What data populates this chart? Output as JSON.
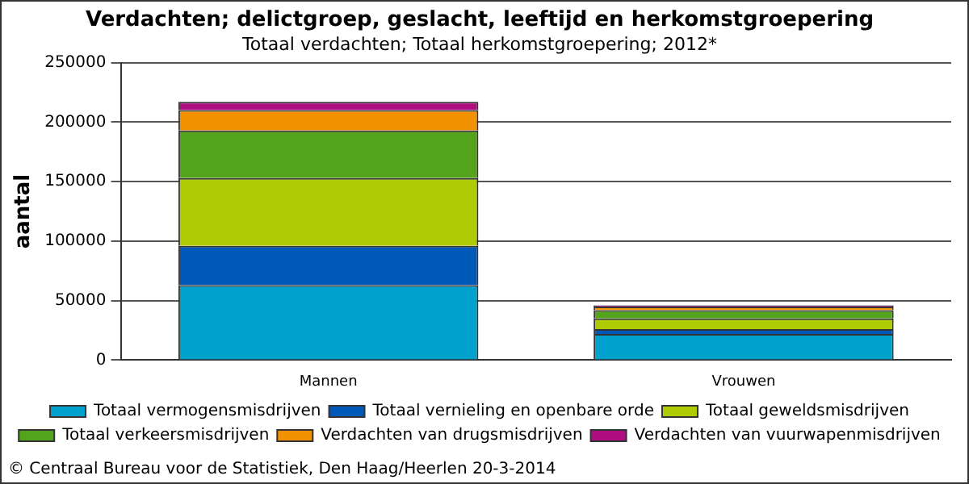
{
  "chart_data": {
    "type": "bar",
    "title": "Verdachten; delictgroep, geslacht, leeftijd en herkomstgroepering",
    "subtitle": "Totaal verdachten; Totaal herkomstgroepering; 2012*",
    "ylabel": "aantal",
    "categories": [
      "Mannen",
      "Vrouwen"
    ],
    "stacked": true,
    "series": [
      {
        "name": "Totaal vermogensmisdrijven",
        "color": "#00a1cd",
        "values": [
          63000,
          22000
        ]
      },
      {
        "name": "Totaal vernieling en openbare orde",
        "color": "#0058b8",
        "values": [
          33000,
          4000
        ]
      },
      {
        "name": "Totaal geweldsmisdrijven",
        "color": "#afcb05",
        "values": [
          57000,
          9000
        ]
      },
      {
        "name": "Totaal verkeersmisdrijven",
        "color": "#53a31d",
        "values": [
          40000,
          7000
        ]
      },
      {
        "name": "Verdachten van drugsmisdrijven",
        "color": "#f39200",
        "values": [
          17000,
          3000
        ]
      },
      {
        "name": "Verdachten van vuurwapenmisdrijven",
        "color": "#af0e80",
        "values": [
          7000,
          1000
        ]
      }
    ],
    "ylim": [
      0,
      250000
    ],
    "yticks": [
      0,
      50000,
      100000,
      150000,
      200000,
      250000
    ],
    "grid": "y",
    "legend": "bottom",
    "annotations": [
      "© Centraal Bureau voor de Statistiek, Den Haag/Heerlen 20-3-2014"
    ]
  }
}
